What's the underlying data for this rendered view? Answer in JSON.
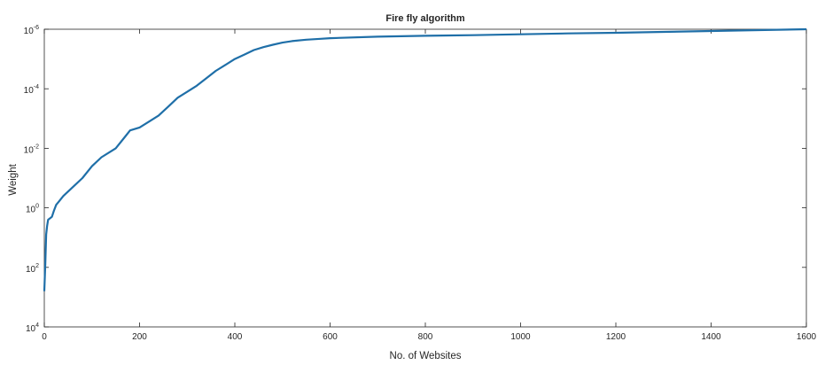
{
  "chart_data": {
    "type": "line",
    "title": "Fire fly algorithm",
    "xlabel": "No. of Websites",
    "ylabel": "Weight",
    "xlim": [
      0,
      1600
    ],
    "ylim_exponent": [
      -6,
      4
    ],
    "ylim_direction": "reversed",
    "y_scale": "log",
    "grid": false,
    "legend": "none",
    "line_color": "#1f6fa8",
    "x_ticks": [
      "0",
      "200",
      "400",
      "600",
      "800",
      "1000",
      "1200",
      "1400",
      "1600"
    ],
    "y_ticks": [
      {
        "mantissa": "10",
        "exponent": "-6"
      },
      {
        "mantissa": "10",
        "exponent": "-4"
      },
      {
        "mantissa": "10",
        "exponent": "-2"
      },
      {
        "mantissa": "10",
        "exponent": "0"
      },
      {
        "mantissa": "10",
        "exponent": "2"
      },
      {
        "mantissa": "10",
        "exponent": "4"
      }
    ],
    "series": [
      {
        "x": [
          0,
          2,
          4,
          6,
          8,
          12,
          16,
          20,
          25,
          30,
          40,
          60,
          80,
          100,
          120,
          150,
          170,
          180,
          200,
          220,
          240,
          260,
          280,
          300,
          320,
          340,
          360,
          380,
          400,
          420,
          440,
          460,
          480,
          500,
          520,
          550,
          580,
          600,
          700,
          800,
          900,
          1000,
          1100,
          1200,
          1300,
          1400,
          1500,
          1600
        ],
        "y_exponent": [
          2.8,
          1.9,
          0.9,
          0.6,
          0.4,
          0.35,
          0.3,
          0.1,
          -0.1,
          -0.2,
          -0.4,
          -0.7,
          -1.0,
          -1.4,
          -1.7,
          -2.0,
          -2.4,
          -2.6,
          -2.7,
          -2.9,
          -3.1,
          -3.4,
          -3.7,
          -3.9,
          -4.1,
          -4.35,
          -4.6,
          -4.8,
          -5.0,
          -5.15,
          -5.3,
          -5.4,
          -5.48,
          -5.55,
          -5.6,
          -5.65,
          -5.68,
          -5.7,
          -5.75,
          -5.78,
          -5.8,
          -5.83,
          -5.86,
          -5.88,
          -5.91,
          -5.94,
          -5.97,
          -6.0
        ]
      }
    ]
  }
}
